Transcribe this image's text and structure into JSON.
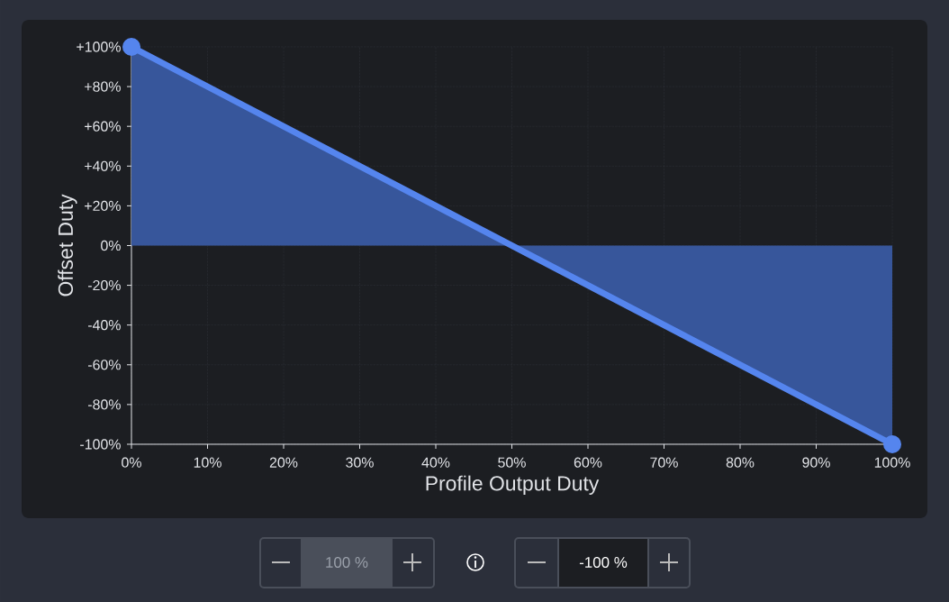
{
  "chart_data": {
    "type": "area",
    "xlabel": "Profile Output Duty",
    "ylabel": "Offset Duty",
    "x": [
      0,
      100
    ],
    "values": [
      100,
      -100
    ],
    "color": "#5585ee",
    "xlim": [
      0,
      100
    ],
    "ylim": [
      -100,
      100
    ],
    "xticks": [
      {
        "value": 0,
        "label": "0%"
      },
      {
        "value": 10,
        "label": "10%"
      },
      {
        "value": 20,
        "label": "20%"
      },
      {
        "value": 30,
        "label": "30%"
      },
      {
        "value": 40,
        "label": "40%"
      },
      {
        "value": 50,
        "label": "50%"
      },
      {
        "value": 60,
        "label": "60%"
      },
      {
        "value": 70,
        "label": "70%"
      },
      {
        "value": 80,
        "label": "80%"
      },
      {
        "value": 90,
        "label": "90%"
      },
      {
        "value": 100,
        "label": "100%"
      }
    ],
    "yticks": [
      {
        "value": -100,
        "label": "-100%"
      },
      {
        "value": -80,
        "label": "-80%"
      },
      {
        "value": -60,
        "label": "-60%"
      },
      {
        "value": -40,
        "label": "-40%"
      },
      {
        "value": -20,
        "label": "-20%"
      },
      {
        "value": 0,
        "label": "0%"
      },
      {
        "value": 20,
        "label": "+20%"
      },
      {
        "value": 40,
        "label": "+40%"
      },
      {
        "value": 60,
        "label": "+60%"
      },
      {
        "value": 80,
        "label": "+80%"
      },
      {
        "value": 100,
        "label": "+100%"
      }
    ],
    "grid": true,
    "marker": "circle",
    "annotations": [
      "100 %",
      "-100 %"
    ]
  }
}
